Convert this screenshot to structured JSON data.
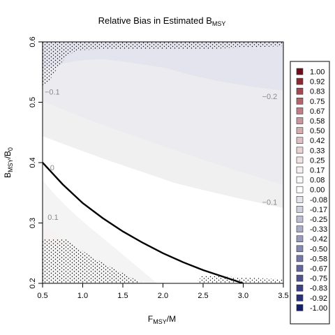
{
  "chart_data": {
    "type": "heatmap",
    "title": {
      "main": "Relative Bias in Estimated B",
      "sub": "MSY"
    },
    "xlabel": {
      "main": "F",
      "sub": "MSY",
      "suffix": "/M"
    },
    "ylabel": {
      "main": "B",
      "sub": "MSY",
      "mid": "/B",
      "sub2": "0"
    },
    "xlim": [
      0.5,
      3.5
    ],
    "ylim": [
      0.2,
      0.6
    ],
    "x_ticks": [
      "0.5",
      "1.0",
      "1.5",
      "2.0",
      "2.5",
      "3.0",
      "3.5"
    ],
    "y_ticks": [
      "0.2",
      "0.3",
      "0.4",
      "0.5",
      "0.6"
    ],
    "grid": false,
    "legend_position": "right",
    "legend": {
      "values": [
        "1.00",
        "0.92",
        "0.83",
        "0.75",
        "0.67",
        "0.58",
        "0.50",
        "0.42",
        "0.33",
        "0.25",
        "0.17",
        "0.08",
        "0.00",
        "-0.08",
        "-0.17",
        "-0.25",
        "-0.33",
        "-0.42",
        "-0.50",
        "-0.58",
        "-0.67",
        "-0.75",
        "-0.83",
        "-0.92",
        "-1.00"
      ],
      "colors": [
        "#6b0f1a",
        "#8c2a33",
        "#a24a52",
        "#b3656c",
        "#c07f85",
        "#cc979c",
        "#d6acb0",
        "#dfc0c3",
        "#e8d3d5",
        "#f0e3e4",
        "#f7f0f0",
        "#fcf9f9",
        "#ffffff",
        "#e4e4ee",
        "#cfd0e0",
        "#bcbed5",
        "#aaadca",
        "#989bbe",
        "#8689b3",
        "#7478a8",
        "#62669c",
        "#4f5490",
        "#3c4284",
        "#293179",
        "#14206e"
      ]
    },
    "contour_labels": [
      {
        "text": "−0.1",
        "x": 0.62,
        "y": 0.513
      },
      {
        "text": "−0.2",
        "x": 3.33,
        "y": 0.505
      },
      {
        "text": "0",
        "x": 0.62,
        "y": 0.387
      },
      {
        "text": "−0.1",
        "x": 3.33,
        "y": 0.33
      },
      {
        "text": "0.1",
        "x": 0.63,
        "y": 0.305
      }
    ],
    "series": [
      {
        "type": "line",
        "x": [
          0.5,
          0.75,
          1.0,
          1.25,
          1.5,
          1.75,
          2.0,
          2.25,
          2.5,
          2.75,
          3.0
        ],
        "y": [
          0.4,
          0.364,
          0.333,
          0.308,
          0.286,
          0.267,
          0.25,
          0.235,
          0.222,
          0.211,
          0.2
        ]
      }
    ]
  }
}
